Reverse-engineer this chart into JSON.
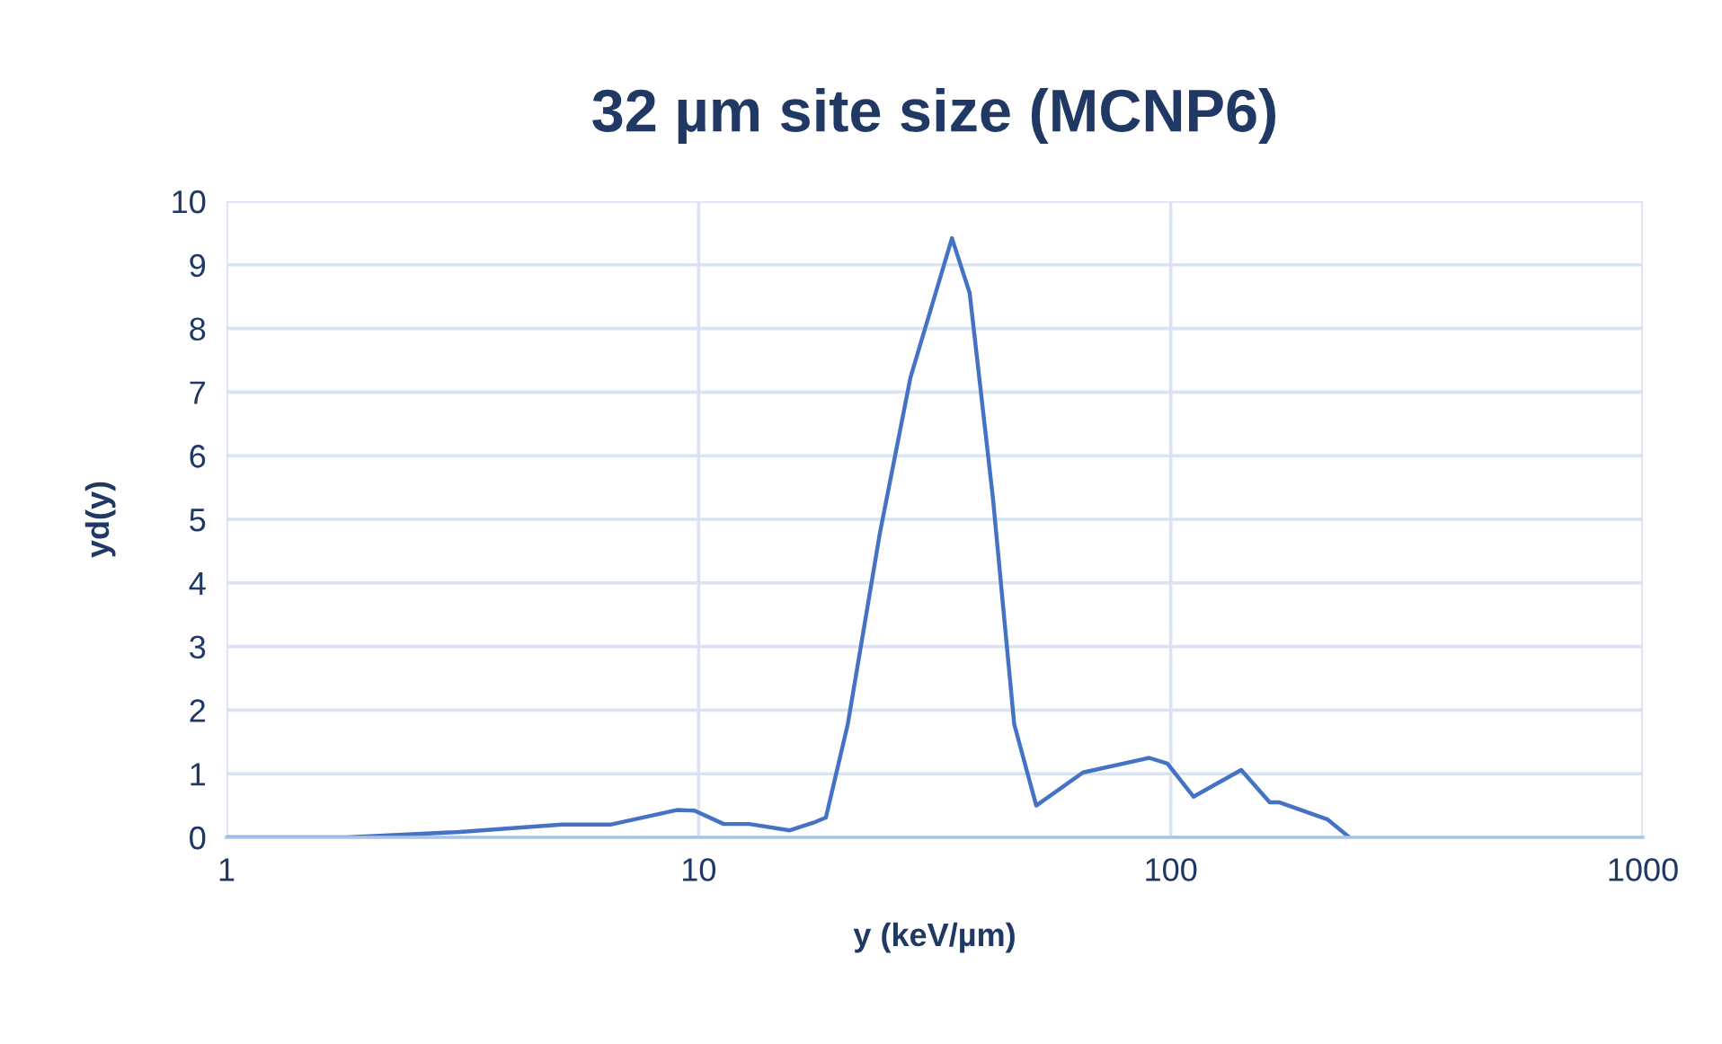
{
  "chart_data": {
    "type": "line",
    "title": "32 µm site size (MCNP6)",
    "xlabel": "y (keV/µm)",
    "ylabel": "yd(y)",
    "log": "x",
    "x": [
      1,
      1.8,
      3.04,
      5.13,
      6.5,
      8.99,
      9.8,
      11.3,
      12.8,
      15.6,
      17.5,
      18.6,
      20.7,
      24.2,
      28.1,
      34.4,
      37.5,
      42.0,
      46.6,
      51.9,
      65.2,
      90,
      98.4,
      111.7,
      141,
      162,
      170,
      215,
      239
    ],
    "series": [
      {
        "color": "#4472c4",
        "values": [
          0,
          0,
          0.08,
          0.2,
          0.2,
          0.43,
          0.42,
          0.21,
          0.21,
          0.11,
          0.23,
          0.31,
          1.78,
          4.78,
          7.23,
          9.42,
          8.56,
          5.34,
          1.78,
          0.5,
          1.02,
          1.25,
          1.16,
          0.64,
          1.06,
          0.55,
          0.55,
          0.28,
          0
        ]
      }
    ],
    "xlim": [
      1,
      1000
    ],
    "xticks": [
      1,
      10,
      100,
      1000
    ],
    "ylim": [
      0,
      10
    ],
    "yticks": [
      0,
      1,
      2,
      3,
      4,
      5,
      6,
      7,
      8,
      9,
      10
    ],
    "grid": true,
    "legend": false,
    "marker": "none",
    "line_style": "solid"
  }
}
